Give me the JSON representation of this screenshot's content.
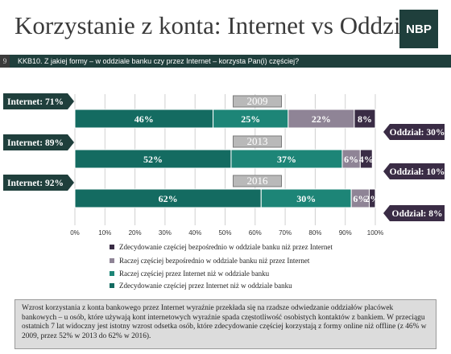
{
  "header": {
    "title": "Korzystanie z konta: Internet vs Oddział",
    "logo": "NBP"
  },
  "question": {
    "number": "9",
    "text": "KKB10. Z jakiej formy – w oddziale banku czy przez Internet – korzysta Pan(i) częściej?"
  },
  "colors": {
    "dark_green": "#1f3f3c",
    "teal": "#1d8577",
    "dark_teal": "#146b61",
    "mauve": "#8f8496",
    "dark_purple": "#3a2c45"
  },
  "chart_data": {
    "type": "bar",
    "orientation": "horizontal-stacked-100",
    "categories": [
      "2009",
      "2013",
      "2016"
    ],
    "series": [
      {
        "name": "Zdecydowanie częściej przez Internet niż w oddziale banku",
        "values": [
          46,
          52,
          62
        ]
      },
      {
        "name": "Raczej częściej przez Internet niż w oddziale banku",
        "values": [
          25,
          37,
          30
        ]
      },
      {
        "name": "Raczej częściej bezpośrednio w oddziale banku niż przez Internet",
        "values": [
          22,
          6,
          6
        ]
      },
      {
        "name": "Zdecydowanie częściej bezpośrednio w oddziale banku niż przez Internet",
        "values": [
          8,
          4,
          2
        ]
      }
    ],
    "xlim": [
      0,
      100
    ],
    "x_ticks": [
      "0%",
      "10%",
      "20%",
      "30%",
      "40%",
      "50%",
      "60%",
      "70%",
      "80%",
      "90%",
      "100%"
    ],
    "grid": true,
    "legend_position": "bottom",
    "callouts_internet": [
      "Internet: 71%",
      "Internet: 89%",
      "Internet: 92%"
    ],
    "callouts_oddzial": [
      "Oddział: 30%",
      "Oddział: 10%",
      "Oddział: 8%"
    ]
  },
  "summary": "Wzrost korzystania z konta bankowego przez Internet wyraźnie przekłada się na rzadsze odwiedzanie oddziałów placówek bankowych – u osób, które używają kont internetowych wyraźnie spada częstotliwość osobistych kontaktów z bankiem. W przeciągu ostatnich 7 lat widoczny jest istotny wzrost odsetka osób, które zdecydowanie częściej korzystają z formy online niż offline (z 46% w 2009, przez 52% w 2013 do 62% w 2016)."
}
